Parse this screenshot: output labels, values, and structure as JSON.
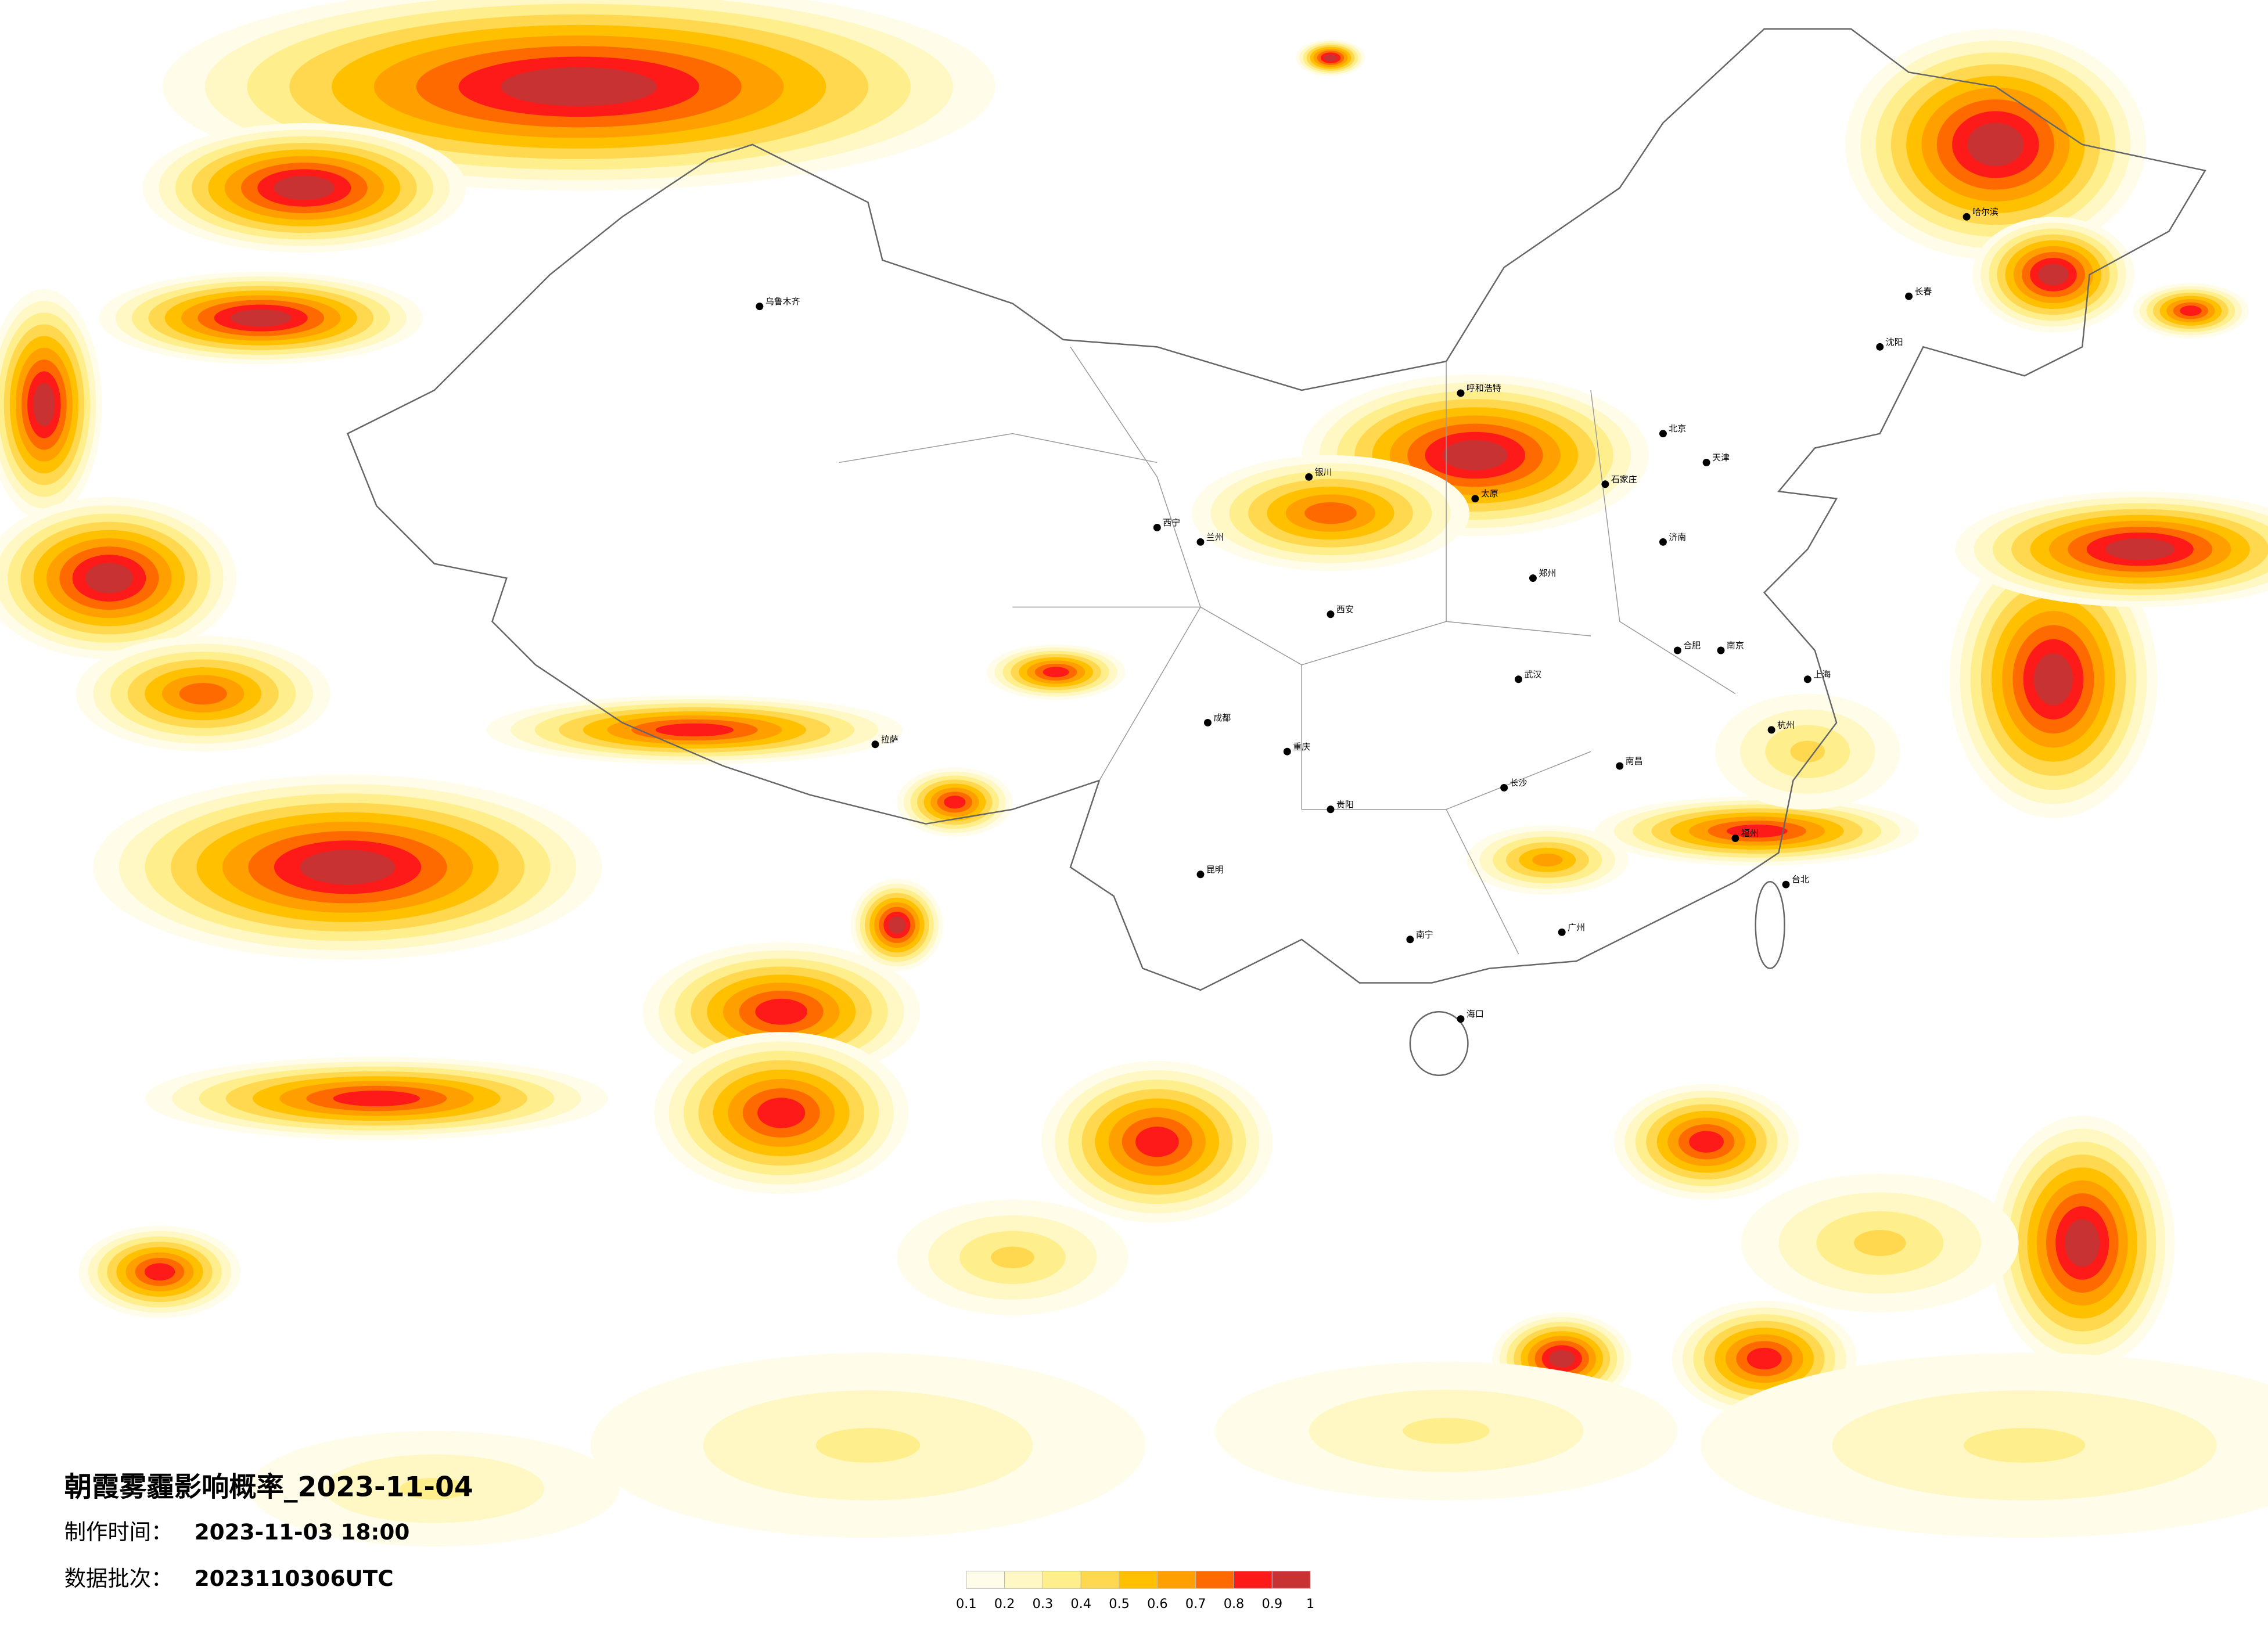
{
  "title": "朝霞雾霾影响概率_2023-11-04",
  "production_time_label": "制作时间：",
  "production_time": "2023-11-03 18:00",
  "batch_label": "数据批次：",
  "batch": "2023110306UTC",
  "colorbar": {
    "ticks": [
      0.1,
      0.2,
      0.3,
      0.4,
      0.5,
      0.6,
      0.7,
      0.8,
      0.9,
      1
    ],
    "colors": [
      "#fffdea",
      "#fff7c4",
      "#ffef8c",
      "#ffd850",
      "#ffc000",
      "#ffa000",
      "#ff6a00",
      "#ff1a1a",
      "#c83232"
    ]
  },
  "cities": [
    "北京",
    "天津",
    "石家庄",
    "太原",
    "呼和浩特",
    "沈阳",
    "长春",
    "哈尔滨",
    "济南",
    "郑州",
    "西安",
    "兰州",
    "西宁",
    "银川",
    "乌鲁木齐",
    "拉萨",
    "成都",
    "重庆",
    "武汉",
    "长沙",
    "南京",
    "上海",
    "杭州",
    "福州",
    "广州",
    "南宁",
    "昆明",
    "贵阳",
    "海口",
    "台北",
    "南昌",
    "合肥"
  ]
}
